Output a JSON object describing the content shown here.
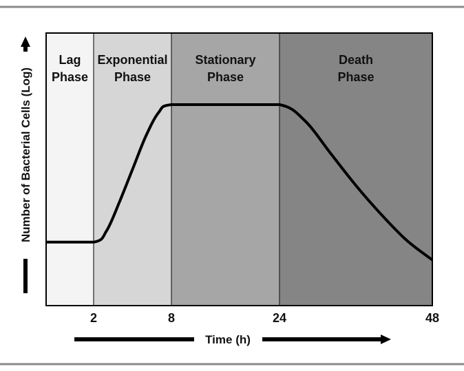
{
  "chart_data": {
    "type": "line",
    "xlabel": "Time (h)",
    "ylabel": "Number of Bacterial Cells (Log)",
    "x_ticks": [
      {
        "value": 2,
        "label": "2"
      },
      {
        "value": 8,
        "label": "8"
      },
      {
        "value": 24,
        "label": "24"
      },
      {
        "value": 48,
        "label": "48"
      }
    ],
    "phases": [
      {
        "line1": "Lag",
        "line2": "Phase",
        "color": "#f4f4f4"
      },
      {
        "line1": "Exponential",
        "line2": "Phase",
        "color": "#d6d6d6"
      },
      {
        "line1": "Stationary",
        "line2": "Phase",
        "color": "#a6a6a6"
      },
      {
        "line1": "Death",
        "line2": "Phase",
        "color": "#858585"
      }
    ],
    "series": [
      {
        "points": [
          [
            0,
            0.15
          ],
          [
            2,
            0.15
          ],
          [
            3,
            0.22
          ],
          [
            4,
            0.4
          ],
          [
            5,
            0.6
          ],
          [
            6,
            0.8
          ],
          [
            7,
            0.95
          ],
          [
            8,
            1.0
          ],
          [
            16,
            1.0
          ],
          [
            24,
            1.0
          ],
          [
            28,
            0.9
          ],
          [
            32,
            0.7
          ],
          [
            36,
            0.5
          ],
          [
            40,
            0.32
          ],
          [
            44,
            0.16
          ],
          [
            48,
            0.04
          ]
        ]
      }
    ],
    "grid": false,
    "legend": "none"
  }
}
